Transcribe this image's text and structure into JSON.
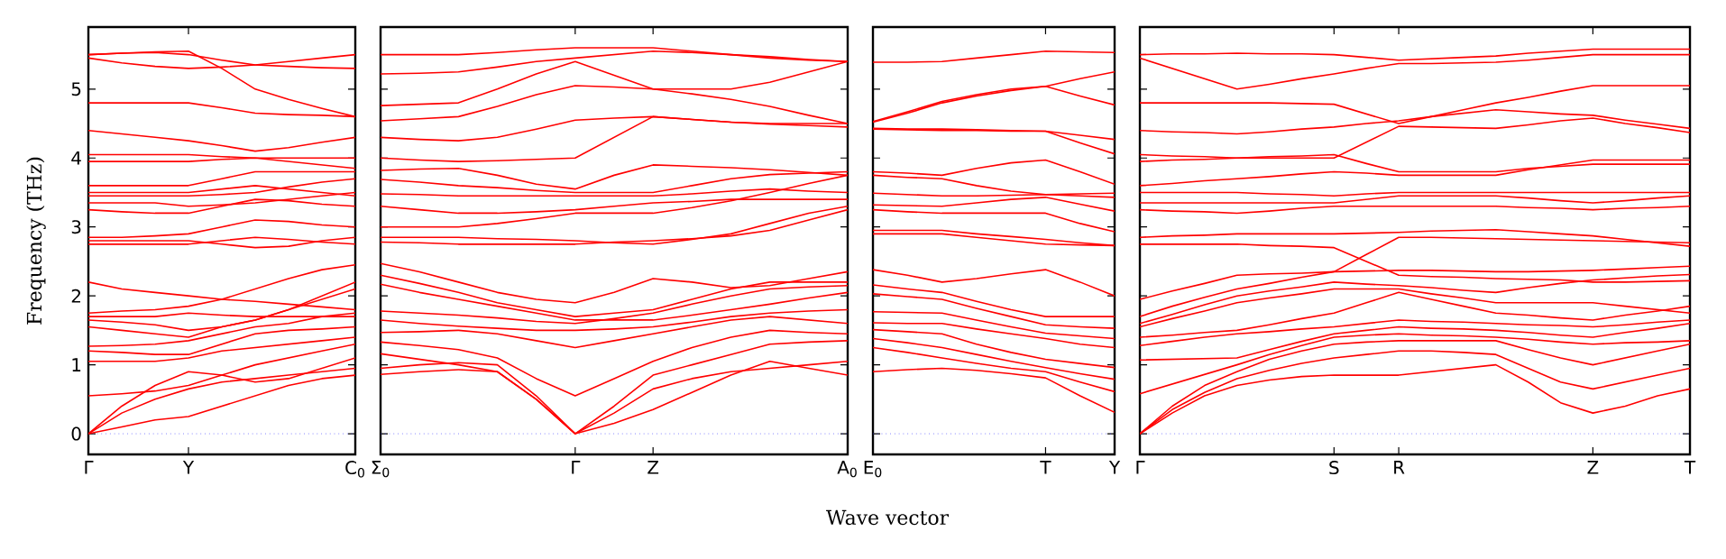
{
  "chart_data": [
    {
      "type": "line",
      "ylabel": "Frequency (THz)",
      "categories": [
        "Γ",
        null,
        null,
        "Y",
        null,
        null,
        null,
        null,
        "C$_{0}$"
      ],
      "ylim": [
        -0.3,
        5.9
      ],
      "yticks": [
        0,
        1,
        2,
        3,
        4,
        5
      ],
      "ref_lines": [
        {
          "axis": "y",
          "value": 0,
          "color": "#4040ff",
          "line_style": "dotted"
        }
      ],
      "grid": false,
      "series": [
        {
          "color": "#ff0000",
          "values": [
            0,
            0.1,
            0.2,
            0.25,
            0.4,
            0.55,
            0.7,
            0.8,
            0.85
          ]
        },
        {
          "color": "#ff0000",
          "values": [
            0,
            0.3,
            0.5,
            0.65,
            0.75,
            0.8,
            0.85,
            0.9,
            0.95
          ]
        },
        {
          "color": "#ff0000",
          "values": [
            0,
            0.4,
            0.7,
            0.9,
            0.85,
            0.75,
            0.8,
            0.95,
            1.1
          ]
        },
        {
          "color": "#ff0000",
          "values": [
            0.55,
            0.58,
            0.62,
            0.7,
            0.85,
            1.0,
            1.1,
            1.2,
            1.3
          ]
        },
        {
          "color": "#ff0000",
          "values": [
            1.05,
            1.05,
            1.05,
            1.1,
            1.2,
            1.25,
            1.3,
            1.35,
            1.4
          ]
        },
        {
          "color": "#ff0000",
          "values": [
            1.2,
            1.18,
            1.15,
            1.15,
            1.3,
            1.45,
            1.5,
            1.52,
            1.55
          ]
        },
        {
          "color": "#ff0000",
          "values": [
            1.27,
            1.28,
            1.3,
            1.35,
            1.45,
            1.55,
            1.6,
            1.7,
            1.75
          ]
        },
        {
          "color": "#ff0000",
          "values": [
            1.55,
            1.5,
            1.45,
            1.4,
            1.55,
            1.65,
            1.8,
            1.95,
            2.1
          ]
        },
        {
          "color": "#ff0000",
          "values": [
            1.65,
            1.62,
            1.58,
            1.5,
            1.55,
            1.65,
            1.8,
            2.0,
            2.2
          ]
        },
        {
          "color": "#ff0000",
          "values": [
            1.7,
            1.7,
            1.7,
            1.75,
            1.72,
            1.7,
            1.7,
            1.7,
            1.7
          ]
        },
        {
          "color": "#ff0000",
          "values": [
            1.75,
            1.78,
            1.8,
            1.85,
            1.95,
            2.1,
            2.25,
            2.38,
            2.45
          ]
        },
        {
          "color": "#ff0000",
          "values": [
            2.2,
            2.1,
            2.05,
            2.0,
            1.95,
            1.92,
            1.88,
            1.84,
            1.8
          ]
        },
        {
          "color": "#ff0000",
          "values": [
            2.75,
            2.75,
            2.75,
            2.75,
            2.8,
            2.85,
            2.82,
            2.78,
            2.75
          ]
        },
        {
          "color": "#ff0000",
          "values": [
            2.8,
            2.8,
            2.8,
            2.8,
            2.75,
            2.7,
            2.72,
            2.8,
            2.85
          ]
        },
        {
          "color": "#ff0000",
          "values": [
            2.85,
            2.85,
            2.87,
            2.9,
            3.0,
            3.1,
            3.08,
            3.03,
            3.0
          ]
        },
        {
          "color": "#ff0000",
          "values": [
            3.25,
            3.22,
            3.2,
            3.2,
            3.3,
            3.4,
            3.38,
            3.33,
            3.3
          ]
        },
        {
          "color": "#ff0000",
          "values": [
            3.35,
            3.35,
            3.35,
            3.3,
            3.32,
            3.35,
            3.4,
            3.45,
            3.5
          ]
        },
        {
          "color": "#ff0000",
          "values": [
            3.45,
            3.45,
            3.45,
            3.45,
            3.47,
            3.5,
            3.58,
            3.65,
            3.7
          ]
        },
        {
          "color": "#ff0000",
          "values": [
            3.5,
            3.5,
            3.5,
            3.5,
            3.55,
            3.6,
            3.55,
            3.5,
            3.45
          ]
        },
        {
          "color": "#ff0000",
          "values": [
            3.6,
            3.6,
            3.6,
            3.6,
            3.7,
            3.8,
            3.8,
            3.8,
            3.8
          ]
        },
        {
          "color": "#ff0000",
          "values": [
            3.95,
            3.95,
            3.95,
            3.95,
            3.98,
            4.0,
            3.95,
            3.9,
            3.85
          ]
        },
        {
          "color": "#ff0000",
          "values": [
            4.05,
            4.05,
            4.05,
            4.05,
            4.02,
            4.0,
            4.0,
            4.0,
            4.0
          ]
        },
        {
          "color": "#ff0000",
          "values": [
            4.4,
            4.35,
            4.3,
            4.25,
            4.18,
            4.1,
            4.15,
            4.23,
            4.3
          ]
        },
        {
          "color": "#ff0000",
          "values": [
            4.8,
            4.8,
            4.8,
            4.8,
            4.73,
            4.65,
            4.63,
            4.62,
            4.6
          ]
        },
        {
          "color": "#ff0000",
          "values": [
            5.45,
            5.38,
            5.33,
            5.3,
            5.32,
            5.35,
            5.4,
            5.45,
            5.5
          ]
        },
        {
          "color": "#ff0000",
          "values": [
            5.5,
            5.52,
            5.54,
            5.55,
            5.3,
            5.0,
            4.85,
            4.72,
            4.6
          ]
        },
        {
          "color": "#ff0000",
          "values": [
            5.5,
            5.52,
            5.53,
            5.5,
            5.42,
            5.35,
            5.33,
            5.31,
            5.3
          ]
        }
      ]
    },
    {
      "type": "line",
      "xlabel": "Wave vector",
      "categories": [
        "Σ$_{0}$",
        null,
        null,
        null,
        null,
        "Γ",
        null,
        "Z",
        null,
        null,
        null,
        null,
        "A$_{0}$"
      ],
      "ylim": [
        -0.3,
        5.9
      ],
      "yticks": [
        0,
        1,
        2,
        3,
        4,
        5
      ],
      "tick_labels": "x",
      "ref_lines": [
        {
          "axis": "y",
          "value": 0,
          "color": "#4040ff",
          "line_style": "dotted"
        }
      ],
      "grid": false,
      "series": [
        {
          "color": "#ff0000",
          "values": [
            0.86,
            0.9,
            0.93,
            0.9,
            0.5,
            0,
            0.15,
            0.35,
            0.6,
            0.85,
            1.05,
            0.95,
            0.85
          ]
        },
        {
          "color": "#ff0000",
          "values": [
            0.95,
            1.0,
            1.03,
            1.0,
            0.55,
            0,
            0.3,
            0.65,
            0.8,
            0.9,
            0.95,
            1.0,
            1.05
          ]
        },
        {
          "color": "#ff0000",
          "values": [
            1.16,
            1.08,
            1.0,
            0.9,
            0.5,
            0,
            0.4,
            0.85,
            1.0,
            1.15,
            1.3,
            1.33,
            1.35
          ]
        },
        {
          "color": "#ff0000",
          "values": [
            1.33,
            1.28,
            1.22,
            1.1,
            0.8,
            0.55,
            0.8,
            1.05,
            1.25,
            1.4,
            1.5,
            1.47,
            1.45
          ]
        },
        {
          "color": "#ff0000",
          "values": [
            1.47,
            1.48,
            1.5,
            1.45,
            1.35,
            1.25,
            1.35,
            1.45,
            1.55,
            1.65,
            1.7,
            1.65,
            1.6
          ]
        },
        {
          "color": "#ff0000",
          "values": [
            1.65,
            1.6,
            1.56,
            1.53,
            1.5,
            1.5,
            1.52,
            1.55,
            1.62,
            1.7,
            1.75,
            1.78,
            1.8
          ]
        },
        {
          "color": "#ff0000",
          "values": [
            1.78,
            1.75,
            1.72,
            1.68,
            1.63,
            1.6,
            1.67,
            1.75,
            1.88,
            2.0,
            2.1,
            2.13,
            2.15
          ]
        },
        {
          "color": "#ff0000",
          "values": [
            2.17,
            2.05,
            1.95,
            1.85,
            1.75,
            1.65,
            1.65,
            1.65,
            1.72,
            1.8,
            1.88,
            1.97,
            2.05
          ]
        },
        {
          "color": "#ff0000",
          "values": [
            2.3,
            2.18,
            2.05,
            1.9,
            1.8,
            1.7,
            1.75,
            1.8,
            1.95,
            2.1,
            2.2,
            2.2,
            2.2
          ]
        },
        {
          "color": "#ff0000",
          "values": [
            2.47,
            2.35,
            2.2,
            2.05,
            1.95,
            1.9,
            2.05,
            2.25,
            2.2,
            2.12,
            2.15,
            2.25,
            2.35
          ]
        },
        {
          "color": "#ff0000",
          "values": [
            2.78,
            2.77,
            2.75,
            2.75,
            2.75,
            2.75,
            2.78,
            2.8,
            2.83,
            2.87,
            2.95,
            3.1,
            3.25
          ]
        },
        {
          "color": "#ff0000",
          "values": [
            2.85,
            2.85,
            2.85,
            2.83,
            2.82,
            2.8,
            2.77,
            2.75,
            2.82,
            2.9,
            3.05,
            3.2,
            3.3
          ]
        },
        {
          "color": "#ff0000",
          "values": [
            3.0,
            3.0,
            3.0,
            3.05,
            3.12,
            3.2,
            3.2,
            3.2,
            3.28,
            3.38,
            3.5,
            3.63,
            3.75
          ]
        },
        {
          "color": "#ff0000",
          "values": [
            3.3,
            3.25,
            3.2,
            3.2,
            3.22,
            3.25,
            3.3,
            3.35,
            3.37,
            3.4,
            3.4,
            3.4,
            3.4
          ]
        },
        {
          "color": "#ff0000",
          "values": [
            3.48,
            3.47,
            3.45,
            3.45,
            3.45,
            3.45,
            3.45,
            3.45,
            3.48,
            3.52,
            3.55,
            3.52,
            3.5
          ]
        },
        {
          "color": "#ff0000",
          "values": [
            3.69,
            3.65,
            3.6,
            3.57,
            3.53,
            3.5,
            3.5,
            3.5,
            3.6,
            3.7,
            3.76,
            3.78,
            3.8
          ]
        },
        {
          "color": "#ff0000",
          "values": [
            3.82,
            3.84,
            3.85,
            3.75,
            3.62,
            3.55,
            3.75,
            3.9,
            3.88,
            3.86,
            3.83,
            3.79,
            3.75
          ]
        },
        {
          "color": "#ff0000",
          "values": [
            4.0,
            3.97,
            3.95,
            3.96,
            3.98,
            4.0,
            4.3,
            4.6,
            4.56,
            4.52,
            4.49,
            4.47,
            4.45
          ]
        },
        {
          "color": "#ff0000",
          "values": [
            4.3,
            4.27,
            4.25,
            4.3,
            4.42,
            4.55,
            4.58,
            4.6,
            4.56,
            4.52,
            4.5,
            4.5,
            4.5
          ]
        },
        {
          "color": "#ff0000",
          "values": [
            4.54,
            4.57,
            4.6,
            4.75,
            4.92,
            5.05,
            5.03,
            5.0,
            4.93,
            4.85,
            4.75,
            4.62,
            4.5
          ]
        },
        {
          "color": "#ff0000",
          "values": [
            4.76,
            4.78,
            4.8,
            5.0,
            5.22,
            5.4,
            5.2,
            5.0,
            5.0,
            5.0,
            5.1,
            5.25,
            5.4
          ]
        },
        {
          "color": "#ff0000",
          "values": [
            5.22,
            5.23,
            5.25,
            5.32,
            5.4,
            5.45,
            5.5,
            5.55,
            5.53,
            5.5,
            5.47,
            5.43,
            5.4
          ]
        },
        {
          "color": "#ff0000",
          "values": [
            5.5,
            5.5,
            5.5,
            5.53,
            5.57,
            5.6,
            5.6,
            5.6,
            5.55,
            5.5,
            5.45,
            5.42,
            5.4
          ]
        }
      ]
    },
    {
      "type": "line",
      "categories": [
        "E$_{0}$",
        null,
        null,
        null,
        null,
        "T",
        null,
        "Y"
      ],
      "ylim": [
        -0.3,
        5.9
      ],
      "yticks": [
        0,
        1,
        2,
        3,
        4,
        5
      ],
      "tick_labels": "x",
      "ref_lines": [
        {
          "axis": "y",
          "value": 0,
          "color": "#4040ff",
          "line_style": "dotted"
        }
      ],
      "grid": false,
      "series": [
        {
          "color": "#ff0000",
          "values": [
            0.9,
            0.93,
            0.95,
            0.92,
            0.87,
            0.81,
            0.55,
            0.31
          ]
        },
        {
          "color": "#ff0000",
          "values": [
            1.25,
            1.18,
            1.1,
            1.02,
            0.95,
            0.9,
            0.75,
            0.61
          ]
        },
        {
          "color": "#ff0000",
          "values": [
            1.38,
            1.32,
            1.25,
            1.15,
            1.05,
            0.96,
            0.87,
            0.79
          ]
        },
        {
          "color": "#ff0000",
          "values": [
            1.51,
            1.48,
            1.45,
            1.3,
            1.18,
            1.08,
            1.02,
            0.96
          ]
        },
        {
          "color": "#ff0000",
          "values": [
            1.61,
            1.6,
            1.6,
            1.52,
            1.45,
            1.38,
            1.3,
            1.25
          ]
        },
        {
          "color": "#ff0000",
          "values": [
            1.77,
            1.76,
            1.75,
            1.65,
            1.55,
            1.46,
            1.42,
            1.38
          ]
        },
        {
          "color": "#ff0000",
          "values": [
            2.03,
            1.99,
            1.95,
            1.82,
            1.7,
            1.58,
            1.55,
            1.53
          ]
        },
        {
          "color": "#ff0000",
          "values": [
            2.16,
            2.1,
            2.05,
            1.92,
            1.8,
            1.7,
            1.7,
            1.7
          ]
        },
        {
          "color": "#ff0000",
          "values": [
            2.38,
            2.3,
            2.2,
            2.25,
            2.32,
            2.38,
            2.2,
            2.0
          ]
        },
        {
          "color": "#ff0000",
          "values": [
            2.9,
            2.9,
            2.9,
            2.85,
            2.8,
            2.75,
            2.74,
            2.73
          ]
        },
        {
          "color": "#ff0000",
          "values": [
            2.95,
            2.95,
            2.95,
            2.9,
            2.86,
            2.82,
            2.77,
            2.73
          ]
        },
        {
          "color": "#ff0000",
          "values": [
            3.25,
            3.22,
            3.2,
            3.2,
            3.2,
            3.2,
            3.05,
            2.93
          ]
        },
        {
          "color": "#ff0000",
          "values": [
            3.32,
            3.31,
            3.3,
            3.35,
            3.4,
            3.43,
            3.33,
            3.23
          ]
        },
        {
          "color": "#ff0000",
          "values": [
            3.49,
            3.47,
            3.45,
            3.45,
            3.46,
            3.47,
            3.45,
            3.43
          ]
        },
        {
          "color": "#ff0000",
          "values": [
            3.75,
            3.72,
            3.7,
            3.6,
            3.52,
            3.47,
            3.48,
            3.49
          ]
        },
        {
          "color": "#ff0000",
          "values": [
            3.8,
            3.78,
            3.75,
            3.85,
            3.93,
            3.97,
            3.8,
            3.62
          ]
        },
        {
          "color": "#ff0000",
          "values": [
            4.42,
            4.41,
            4.4,
            4.4,
            4.39,
            4.39,
            4.22,
            4.06
          ]
        },
        {
          "color": "#ff0000",
          "values": [
            4.43,
            4.42,
            4.42,
            4.41,
            4.4,
            4.39,
            4.33,
            4.27
          ]
        },
        {
          "color": "#ff0000",
          "values": [
            4.52,
            4.65,
            4.8,
            4.9,
            4.98,
            5.04,
            4.9,
            4.77
          ]
        },
        {
          "color": "#ff0000",
          "values": [
            4.53,
            4.67,
            4.82,
            4.92,
            5.0,
            5.04,
            5.15,
            5.25
          ]
        },
        {
          "color": "#ff0000",
          "values": [
            5.39,
            5.39,
            5.4,
            5.45,
            5.5,
            5.55,
            5.54,
            5.53
          ]
        }
      ]
    },
    {
      "type": "line",
      "categories": [
        "Γ",
        null,
        null,
        null,
        null,
        null,
        "S",
        null,
        "R",
        null,
        null,
        null,
        null,
        null,
        "Z",
        null,
        null,
        "T"
      ],
      "ylim": [
        -0.3,
        5.9
      ],
      "yticks": [
        0,
        1,
        2,
        3,
        4,
        5
      ],
      "tick_labels": "x",
      "ref_lines": [
        {
          "axis": "y",
          "value": 0,
          "color": "#4040ff",
          "line_style": "dotted"
        }
      ],
      "grid": false,
      "series": [
        {
          "color": "#ff0000",
          "values": [
            0,
            0.3,
            0.55,
            0.7,
            0.78,
            0.83,
            0.85,
            0.85,
            0.85,
            0.9,
            0.95,
            1.0,
            0.75,
            0.45,
            0.3,
            0.4,
            0.55,
            0.65
          ]
        },
        {
          "color": "#ff0000",
          "values": [
            0,
            0.35,
            0.6,
            0.8,
            0.92,
            1.02,
            1.1,
            1.15,
            1.2,
            1.2,
            1.18,
            1.15,
            0.95,
            0.75,
            0.65,
            0.75,
            0.85,
            0.95
          ]
        },
        {
          "color": "#ff0000",
          "values": [
            0,
            0.4,
            0.7,
            0.9,
            1.08,
            1.2,
            1.3,
            1.33,
            1.35,
            1.35,
            1.35,
            1.35,
            1.22,
            1.1,
            1.0,
            1.1,
            1.2,
            1.3
          ]
        },
        {
          "color": "#ff0000",
          "values": [
            0.58,
            0.72,
            0.86,
            1.0,
            1.15,
            1.28,
            1.4,
            1.43,
            1.45,
            1.43,
            1.42,
            1.4,
            1.37,
            1.33,
            1.3,
            1.32,
            1.33,
            1.35
          ]
        },
        {
          "color": "#ff0000",
          "values": [
            1.07,
            1.08,
            1.09,
            1.1,
            1.22,
            1.34,
            1.45,
            1.5,
            1.55,
            1.53,
            1.52,
            1.5,
            1.47,
            1.43,
            1.4,
            1.47,
            1.53,
            1.6
          ]
        },
        {
          "color": "#ff0000",
          "values": [
            1.28,
            1.34,
            1.4,
            1.45,
            1.48,
            1.52,
            1.55,
            1.6,
            1.65,
            1.63,
            1.62,
            1.6,
            1.58,
            1.57,
            1.55,
            1.58,
            1.62,
            1.65
          ]
        },
        {
          "color": "#ff0000",
          "values": [
            1.4,
            1.43,
            1.47,
            1.5,
            1.58,
            1.67,
            1.75,
            1.9,
            2.05,
            1.95,
            1.85,
            1.75,
            1.72,
            1.68,
            1.65,
            1.72,
            1.78,
            1.85
          ]
        },
        {
          "color": "#ff0000",
          "values": [
            1.55,
            1.67,
            1.78,
            1.9,
            1.97,
            2.03,
            2.1,
            2.1,
            2.1,
            2.03,
            1.97,
            1.9,
            1.9,
            1.9,
            1.9,
            1.85,
            1.8,
            1.75
          ]
        },
        {
          "color": "#ff0000",
          "values": [
            1.6,
            1.73,
            1.87,
            2.0,
            2.07,
            2.13,
            2.2,
            2.17,
            2.15,
            2.12,
            2.08,
            2.05,
            2.12,
            2.18,
            2.23,
            2.26,
            2.29,
            2.31
          ]
        },
        {
          "color": "#ff0000",
          "values": [
            1.7,
            1.85,
            1.98,
            2.1,
            2.18,
            2.27,
            2.35,
            2.36,
            2.37,
            2.37,
            2.36,
            2.35,
            2.35,
            2.36,
            2.37,
            2.39,
            2.41,
            2.43
          ]
        },
        {
          "color": "#ff0000",
          "values": [
            1.95,
            2.07,
            2.18,
            2.3,
            2.32,
            2.33,
            2.35,
            2.6,
            2.85,
            2.85,
            2.84,
            2.83,
            2.82,
            2.81,
            2.8,
            2.79,
            2.78,
            2.77
          ]
        },
        {
          "color": "#ff0000",
          "values": [
            2.75,
            2.75,
            2.75,
            2.75,
            2.73,
            2.72,
            2.7,
            2.5,
            2.3,
            2.28,
            2.27,
            2.25,
            2.24,
            2.23,
            2.2,
            2.2,
            2.21,
            2.22
          ]
        },
        {
          "color": "#ff0000",
          "values": [
            2.85,
            2.87,
            2.88,
            2.9,
            2.9,
            2.9,
            2.9,
            2.91,
            2.92,
            2.94,
            2.95,
            2.96,
            2.93,
            2.9,
            2.87,
            2.82,
            2.77,
            2.72
          ]
        },
        {
          "color": "#ff0000",
          "values": [
            3.25,
            3.23,
            3.22,
            3.2,
            3.23,
            3.27,
            3.3,
            3.3,
            3.3,
            3.3,
            3.3,
            3.3,
            3.28,
            3.27,
            3.25,
            3.27,
            3.28,
            3.3
          ]
        },
        {
          "color": "#ff0000",
          "values": [
            3.35,
            3.35,
            3.35,
            3.35,
            3.35,
            3.35,
            3.35,
            3.4,
            3.45,
            3.45,
            3.45,
            3.45,
            3.42,
            3.38,
            3.35,
            3.38,
            3.42,
            3.45
          ]
        },
        {
          "color": "#ff0000",
          "values": [
            3.5,
            3.5,
            3.5,
            3.5,
            3.48,
            3.47,
            3.45,
            3.48,
            3.5,
            3.5,
            3.5,
            3.5,
            3.5,
            3.5,
            3.5,
            3.5,
            3.5,
            3.5
          ]
        },
        {
          "color": "#ff0000",
          "values": [
            3.6,
            3.63,
            3.67,
            3.7,
            3.73,
            3.77,
            3.8,
            3.78,
            3.75,
            3.75,
            3.75,
            3.75,
            3.83,
            3.9,
            3.97,
            3.97,
            3.97,
            3.97
          ]
        },
        {
          "color": "#ff0000",
          "values": [
            3.95,
            3.97,
            3.98,
            4.0,
            4.02,
            4.03,
            4.05,
            3.92,
            3.8,
            3.8,
            3.8,
            3.8,
            3.85,
            3.88,
            3.91,
            3.91,
            3.91,
            3.91
          ]
        },
        {
          "color": "#ff0000",
          "values": [
            4.05,
            4.03,
            4.02,
            4.0,
            4.0,
            4.0,
            4.0,
            4.23,
            4.46,
            4.45,
            4.44,
            4.43,
            4.48,
            4.54,
            4.58,
            4.5,
            4.44,
            4.37
          ]
        },
        {
          "color": "#ff0000",
          "values": [
            4.4,
            4.38,
            4.37,
            4.35,
            4.38,
            4.42,
            4.45,
            4.5,
            4.54,
            4.6,
            4.65,
            4.7,
            4.67,
            4.64,
            4.62,
            4.55,
            4.49,
            4.43
          ]
        },
        {
          "color": "#ff0000",
          "values": [
            4.8,
            4.8,
            4.8,
            4.8,
            4.8,
            4.79,
            4.78,
            4.64,
            4.5,
            4.6,
            4.7,
            4.8,
            4.88,
            4.97,
            5.05,
            5.05,
            5.05,
            5.05
          ]
        },
        {
          "color": "#ff0000",
          "values": [
            5.45,
            5.3,
            5.15,
            5.0,
            5.07,
            5.15,
            5.22,
            5.3,
            5.37,
            5.37,
            5.38,
            5.39,
            5.42,
            5.46,
            5.5,
            5.5,
            5.5,
            5.5
          ]
        },
        {
          "color": "#ff0000",
          "values": [
            5.5,
            5.51,
            5.51,
            5.52,
            5.51,
            5.51,
            5.5,
            5.46,
            5.42,
            5.44,
            5.46,
            5.48,
            5.52,
            5.55,
            5.58,
            5.58,
            5.58,
            5.58
          ]
        }
      ]
    }
  ]
}
